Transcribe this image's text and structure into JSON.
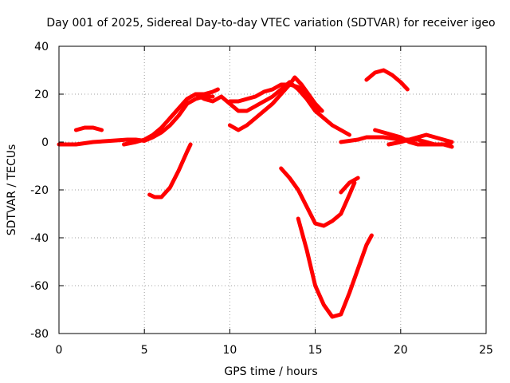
{
  "chart_data": {
    "type": "line",
    "title": "Day 001 of 2025, Sidereal Day-to-day VTEC variation (SDTVAR) for receiver igeo",
    "xlabel": "GPS time / hours",
    "ylabel": "SDTVAR / TECUs",
    "xlim": [
      0,
      25
    ],
    "ylim": [
      -80,
      40
    ],
    "xticks": [
      0,
      5,
      10,
      15,
      20,
      25
    ],
    "yticks": [
      -80,
      -60,
      -40,
      -20,
      0,
      20,
      40
    ],
    "xtick_labels": [
      "0",
      "5",
      "10",
      "15",
      "20",
      "25"
    ],
    "ytick_labels": [
      "-80",
      "-60",
      "-40",
      "-20",
      "0",
      "20",
      "40"
    ],
    "grid": true,
    "series_color": "#ff0000",
    "series": [
      {
        "name": "arc-base",
        "points": [
          [
            0,
            -1
          ],
          [
            1,
            -1
          ],
          [
            2,
            0
          ],
          [
            3,
            0.5
          ],
          [
            4,
            1
          ],
          [
            4.5,
            1
          ],
          [
            5,
            0.5
          ],
          [
            5.5,
            2
          ],
          [
            6,
            4
          ],
          [
            6.5,
            7
          ],
          [
            7,
            11
          ],
          [
            7.5,
            16
          ],
          [
            8,
            18
          ],
          [
            8.5,
            19
          ],
          [
            9,
            19
          ]
        ]
      },
      {
        "name": "arc-early",
        "points": [
          [
            1,
            5
          ],
          [
            1.5,
            6
          ],
          [
            2,
            6
          ],
          [
            2.5,
            5
          ]
        ]
      },
      {
        "name": "arc-rise",
        "points": [
          [
            3.8,
            -1
          ],
          [
            4.5,
            0
          ],
          [
            5,
            1
          ],
          [
            5.5,
            3
          ],
          [
            6,
            6
          ],
          [
            6.5,
            10
          ],
          [
            7,
            14
          ],
          [
            7.5,
            18
          ],
          [
            8,
            20
          ],
          [
            8.5,
            20
          ],
          [
            9,
            21
          ],
          [
            9.3,
            22
          ]
        ]
      },
      {
        "name": "arc-dip",
        "points": [
          [
            5.3,
            -22
          ],
          [
            5.6,
            -23
          ],
          [
            6,
            -23
          ],
          [
            6.5,
            -19
          ],
          [
            7,
            -12
          ],
          [
            7.5,
            -4
          ],
          [
            7.7,
            -1
          ]
        ]
      },
      {
        "name": "arc-mid",
        "points": [
          [
            6.5,
            10
          ],
          [
            7,
            14
          ],
          [
            7.5,
            18
          ],
          [
            8,
            20
          ],
          [
            8.5,
            18
          ],
          [
            9,
            17
          ],
          [
            9.5,
            19
          ],
          [
            10,
            16
          ],
          [
            10.5,
            13
          ],
          [
            11,
            13
          ],
          [
            11.5,
            15
          ],
          [
            12,
            17
          ],
          [
            12.5,
            19
          ],
          [
            13,
            22
          ],
          [
            13.5,
            25
          ],
          [
            14,
            22
          ],
          [
            14.5,
            18
          ],
          [
            15,
            13
          ],
          [
            15.5,
            10
          ],
          [
            16,
            7
          ],
          [
            16.5,
            5
          ],
          [
            17,
            3
          ]
        ]
      },
      {
        "name": "arc-mid2",
        "points": [
          [
            10,
            7
          ],
          [
            10.5,
            5
          ],
          [
            11,
            7
          ],
          [
            11.5,
            10
          ],
          [
            12,
            13
          ],
          [
            12.5,
            16
          ],
          [
            13,
            20
          ],
          [
            13.5,
            24
          ],
          [
            13.8,
            27
          ],
          [
            14.2,
            24
          ],
          [
            14.6,
            20
          ],
          [
            15,
            16
          ],
          [
            15.4,
            13
          ]
        ]
      },
      {
        "name": "arc-mid3",
        "points": [
          [
            10,
            17
          ],
          [
            10.5,
            17
          ],
          [
            11,
            18
          ],
          [
            11.5,
            19
          ],
          [
            12,
            21
          ],
          [
            12.5,
            22
          ],
          [
            13,
            24
          ],
          [
            13.5,
            24
          ],
          [
            14,
            23
          ],
          [
            14.5,
            20
          ],
          [
            15,
            15
          ],
          [
            15.2,
            12
          ]
        ]
      },
      {
        "name": "arc-down1",
        "points": [
          [
            13,
            -11
          ],
          [
            13.5,
            -15
          ],
          [
            14,
            -20
          ],
          [
            14.5,
            -27
          ],
          [
            15,
            -34
          ],
          [
            15.5,
            -35
          ],
          [
            16,
            -33
          ],
          [
            16.5,
            -30
          ],
          [
            17,
            -22
          ],
          [
            17.3,
            -17
          ]
        ]
      },
      {
        "name": "arc-down2",
        "points": [
          [
            14,
            -32
          ],
          [
            14.5,
            -45
          ],
          [
            15,
            -60
          ],
          [
            15.5,
            -68
          ],
          [
            16,
            -73
          ],
          [
            16.5,
            -72
          ],
          [
            17,
            -63
          ],
          [
            17.5,
            -53
          ],
          [
            18,
            -43
          ],
          [
            18.3,
            -39
          ]
        ]
      },
      {
        "name": "arc-short",
        "points": [
          [
            16.5,
            -21
          ],
          [
            17,
            -17
          ],
          [
            17.5,
            -15
          ]
        ]
      },
      {
        "name": "arc-late",
        "points": [
          [
            16.5,
            0
          ],
          [
            17.5,
            1
          ],
          [
            18,
            2
          ],
          [
            19,
            2
          ],
          [
            20,
            1
          ],
          [
            20.5,
            1
          ],
          [
            21,
            1
          ],
          [
            21.5,
            0
          ],
          [
            22,
            -1
          ],
          [
            22.5,
            -1
          ],
          [
            22.9,
            -1
          ]
        ]
      },
      {
        "name": "arc-late2",
        "points": [
          [
            18.5,
            5
          ],
          [
            19,
            4
          ],
          [
            19.5,
            3
          ],
          [
            20,
            2
          ],
          [
            20.5,
            0
          ],
          [
            21,
            -1
          ],
          [
            21.5,
            -1
          ],
          [
            22,
            -1
          ],
          [
            22.5,
            -1
          ],
          [
            23,
            -2
          ]
        ]
      },
      {
        "name": "arc-late3",
        "points": [
          [
            19.3,
            -1
          ],
          [
            20,
            0
          ],
          [
            20.5,
            1
          ],
          [
            21,
            2
          ],
          [
            21.5,
            3
          ],
          [
            22,
            2
          ],
          [
            22.5,
            1
          ],
          [
            23,
            0
          ]
        ]
      },
      {
        "name": "arc-top",
        "points": [
          [
            18,
            26
          ],
          [
            18.5,
            29
          ],
          [
            19,
            30
          ],
          [
            19.5,
            28
          ],
          [
            20,
            25
          ],
          [
            20.4,
            22
          ]
        ]
      }
    ]
  }
}
